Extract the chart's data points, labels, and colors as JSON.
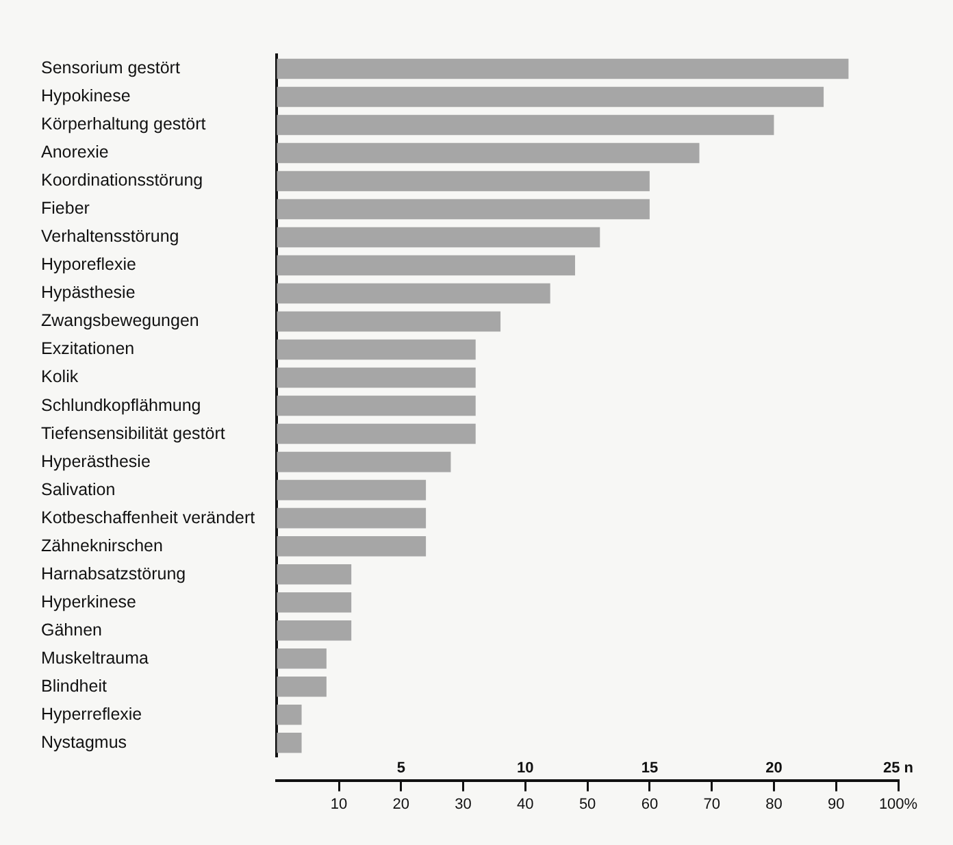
{
  "chart_data": {
    "type": "bar",
    "orientation": "horizontal",
    "categories": [
      "Sensorium gestört",
      "Hypokinese",
      "Körperhaltung gestört",
      "Anorexie",
      "Koordinationsstörung",
      "Fieber",
      "Verhaltensstörung",
      "Hyporeflexie",
      "Hypästhesie",
      "Zwangsbewegungen",
      "Exzitationen",
      "Kolik",
      "Schlundkopflähmung",
      "Tiefensensibilität gestört",
      "Hyperästhesie",
      "Salivation",
      "Kotbeschaffenheit verändert",
      "Zähneknirschen",
      "Harnabsatzstörung",
      "Hyperkinese",
      "Gähnen",
      "Muskeltrauma",
      "Blindheit",
      "Hyperreflexie",
      "Nystagmus"
    ],
    "values": [
      23,
      22,
      20,
      17,
      15,
      15,
      13,
      12,
      11,
      9,
      8,
      8,
      8,
      8,
      7,
      6,
      6,
      6,
      3,
      3,
      3,
      2,
      2,
      1,
      1
    ],
    "color": "#a6a6a6",
    "xlim": [
      0,
      25
    ],
    "xticks": [
      5,
      10,
      15,
      20,
      {
        "value": 25,
        "label": "25 n"
      }
    ],
    "x2lim": [
      0,
      100
    ],
    "x2ticks": [
      10,
      20,
      30,
      40,
      50,
      60,
      70,
      80,
      90,
      {
        "value": 100,
        "label": "100%"
      }
    ],
    "grid": false,
    "legend": false
  }
}
